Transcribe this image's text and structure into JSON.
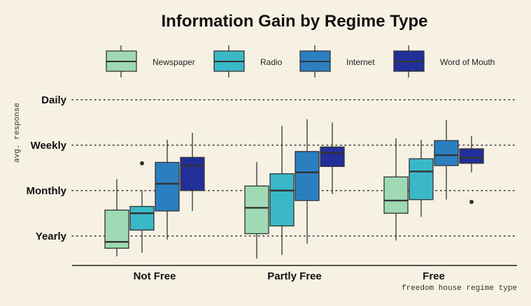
{
  "chart_data": {
    "type": "box",
    "title": "Information Gain by Regime Type",
    "xlabel": "freedom house regime type",
    "ylabel": "avg. response",
    "categories": [
      "Not Free",
      "Partly Free",
      "Free"
    ],
    "y_ticks": [
      {
        "label": "Yearly",
        "value": 1
      },
      {
        "label": "Monthly",
        "value": 2
      },
      {
        "label": "Weekly",
        "value": 3
      },
      {
        "label": "Daily",
        "value": 4
      }
    ],
    "ylim": [
      0.35,
      4.35
    ],
    "grid": "horizontal-dotted",
    "legend_position": "top",
    "series": [
      {
        "name": "Newspaper",
        "color": "#9fdab4",
        "boxes": [
          {
            "min": 0.55,
            "q1": 0.73,
            "median": 0.87,
            "q3": 1.57,
            "max": 2.25,
            "outliers": []
          },
          {
            "min": 0.5,
            "q1": 1.05,
            "median": 1.62,
            "q3": 2.1,
            "max": 2.63,
            "outliers": []
          },
          {
            "min": 0.9,
            "q1": 1.5,
            "median": 1.78,
            "q3": 2.3,
            "max": 3.15,
            "outliers": []
          }
        ]
      },
      {
        "name": "Radio",
        "color": "#3ab8c8",
        "boxes": [
          {
            "min": 0.63,
            "q1": 1.13,
            "median": 1.5,
            "q3": 1.65,
            "max": 2.0,
            "outliers": [
              2.6
            ]
          },
          {
            "min": 0.58,
            "q1": 1.22,
            "median": 2.0,
            "q3": 2.37,
            "max": 3.42,
            "outliers": []
          },
          {
            "min": 1.42,
            "q1": 1.8,
            "median": 2.42,
            "q3": 2.7,
            "max": 3.12,
            "outliers": []
          }
        ]
      },
      {
        "name": "Internet",
        "color": "#2b7fc1",
        "boxes": [
          {
            "min": 0.92,
            "q1": 1.55,
            "median": 2.15,
            "q3": 2.62,
            "max": 3.12,
            "outliers": []
          },
          {
            "min": 0.83,
            "q1": 1.78,
            "median": 2.4,
            "q3": 2.86,
            "max": 3.57,
            "outliers": []
          },
          {
            "min": 1.8,
            "q1": 2.55,
            "median": 2.78,
            "q3": 3.1,
            "max": 3.55,
            "outliers": []
          }
        ]
      },
      {
        "name": "Word of Mouth",
        "color": "#232f99",
        "boxes": [
          {
            "min": 1.55,
            "q1": 2.0,
            "median": 2.55,
            "q3": 2.73,
            "max": 3.27,
            "outliers": []
          },
          {
            "min": 1.92,
            "q1": 2.53,
            "median": 2.83,
            "q3": 2.96,
            "max": 3.5,
            "outliers": []
          },
          {
            "min": 2.4,
            "q1": 2.6,
            "median": 2.72,
            "q3": 2.92,
            "max": 3.2,
            "outliers": [
              1.75
            ]
          }
        ]
      }
    ]
  }
}
